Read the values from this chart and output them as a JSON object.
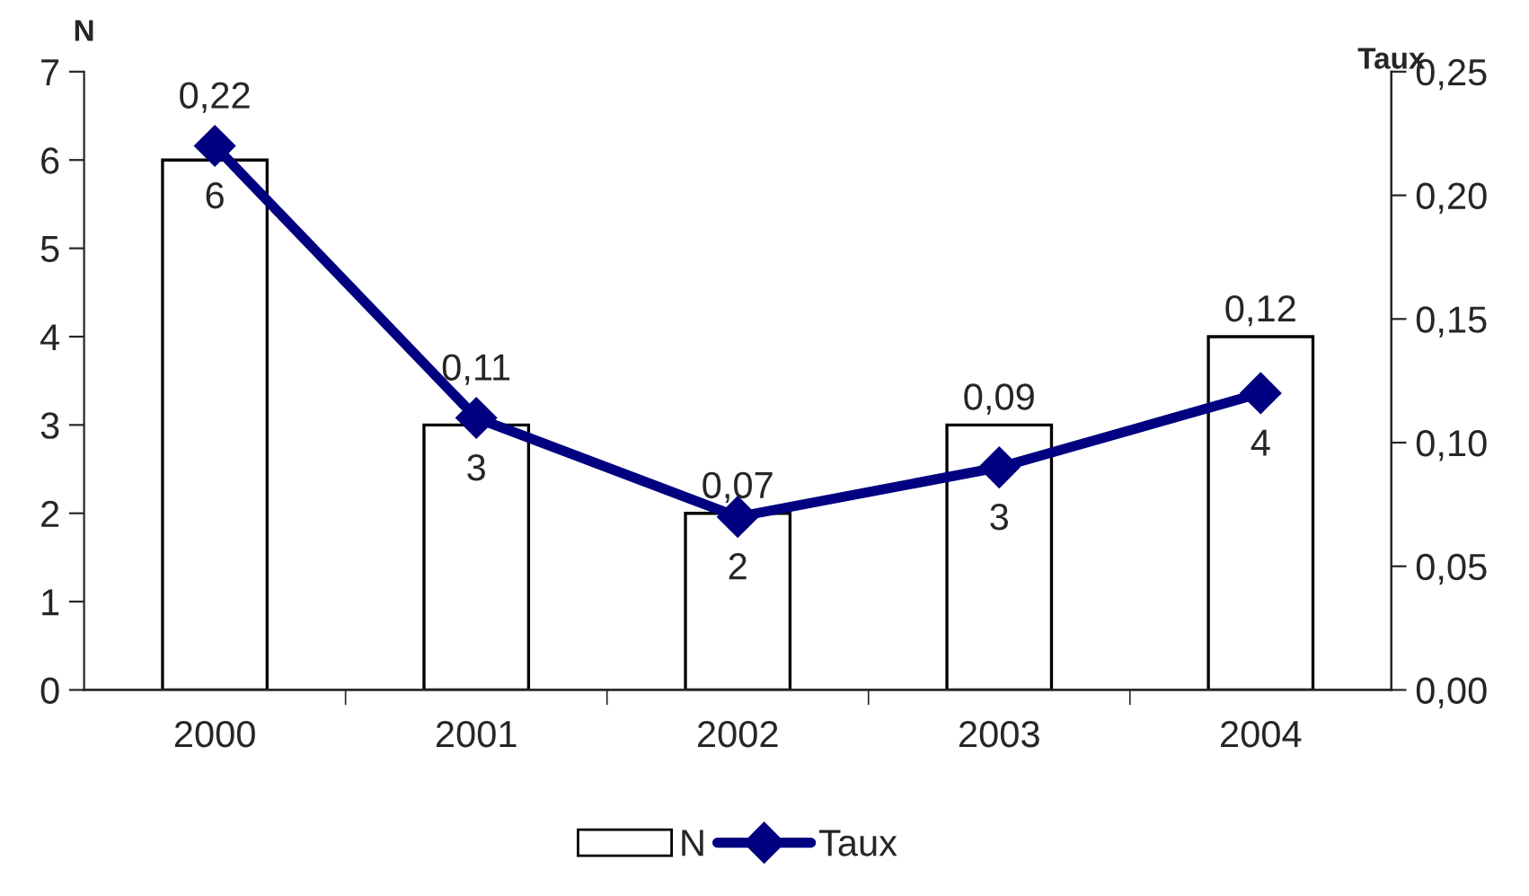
{
  "chart_data": {
    "type": "bar",
    "categories": [
      "2000",
      "2001",
      "2002",
      "2003",
      "2004"
    ],
    "series": [
      {
        "name": "N",
        "color": "#ffffff",
        "values": [
          6,
          3,
          2,
          3,
          4
        ],
        "value_labels": [
          "6",
          "3",
          "2",
          "3",
          "4"
        ]
      },
      {
        "name": "Taux",
        "type": "line",
        "axis": "y2",
        "color": "#000080",
        "values": [
          0.22,
          0.11,
          0.07,
          0.09,
          0.12
        ],
        "value_labels": [
          "0,22",
          "0,11",
          "0,07",
          "0,09",
          "0,12"
        ]
      }
    ],
    "ylabel": "N",
    "y2label": "Taux",
    "ylim": [
      0,
      7
    ],
    "yticks": [
      0,
      1,
      2,
      3,
      4,
      5,
      6,
      7
    ],
    "y2lim": [
      0,
      0.25
    ],
    "y2ticks": [
      {
        "value": 0,
        "label": "0,00"
      },
      {
        "value": 0.05,
        "label": "0,05"
      },
      {
        "value": 0.1,
        "label": "0,10"
      },
      {
        "value": 0.15,
        "label": "0,15"
      },
      {
        "value": 0.2,
        "label": "0,20"
      },
      {
        "value": 0.25,
        "label": "0,25"
      }
    ],
    "marker": "diamond",
    "line_style": "solid",
    "grid": false,
    "legend": "bottom"
  }
}
